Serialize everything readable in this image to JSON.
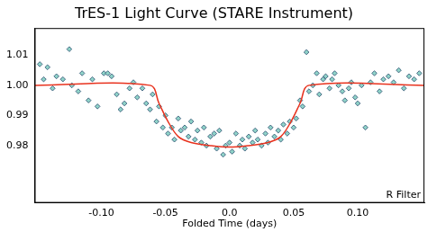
{
  "chart_data": {
    "type": "scatter",
    "title": "TrES-1 Light Curve (STARE Instrument)",
    "x_label": "Folded Time (days)",
    "annotation": "R Filter",
    "xlim": [
      -0.152,
      0.152
    ],
    "ylim": [
      0.961,
      1.019
    ],
    "xticks": [
      {
        "value": -0.1,
        "label": "-0.10"
      },
      -0.05,
      {
        "value": 0,
        "label": "0.0"
      },
      0.05,
      {
        "value": 0.1,
        "label": "0.10"
      }
    ],
    "yticks": [
      0.98,
      0.99,
      {
        "value": 1,
        "label": "1.00"
      },
      1.01
    ],
    "grid": false,
    "series": [
      {
        "type": "scatter",
        "marker": "diamond",
        "color": "#8fd3c8",
        "x": [
          -0.148,
          -0.145,
          -0.142,
          -0.138,
          -0.135,
          -0.13,
          -0.125,
          -0.123,
          -0.118,
          -0.115,
          -0.11,
          -0.107,
          -0.103,
          -0.098,
          -0.095,
          -0.092,
          -0.088,
          -0.085,
          -0.082,
          -0.078,
          -0.075,
          -0.072,
          -0.068,
          -0.065,
          -0.062,
          -0.06,
          -0.057,
          -0.055,
          -0.052,
          -0.05,
          -0.048,
          -0.045,
          -0.043,
          -0.04,
          -0.038,
          -0.035,
          -0.032,
          -0.03,
          -0.027,
          -0.025,
          -0.022,
          -0.02,
          -0.018,
          -0.015,
          -0.012,
          -0.01,
          -0.008,
          -0.005,
          -0.003,
          0.0,
          0.002,
          0.005,
          0.008,
          0.01,
          0.012,
          0.015,
          0.018,
          0.02,
          0.022,
          0.025,
          0.028,
          0.03,
          0.032,
          0.035,
          0.038,
          0.04,
          0.042,
          0.045,
          0.047,
          0.05,
          0.052,
          0.055,
          0.057,
          0.06,
          0.062,
          0.065,
          0.068,
          0.07,
          0.073,
          0.075,
          0.078,
          0.08,
          0.082,
          0.085,
          0.088,
          0.09,
          0.093,
          0.095,
          0.098,
          0.1,
          0.103,
          0.106,
          0.11,
          0.113,
          0.117,
          0.12,
          0.124,
          0.128,
          0.132,
          0.136,
          0.14,
          0.144,
          0.148
        ],
        "values": [
          1.007,
          1.002,
          1.006,
          0.999,
          1.003,
          1.002,
          1.012,
          1.0,
          0.998,
          1.004,
          0.995,
          1.002,
          0.993,
          1.004,
          1.004,
          1.003,
          0.997,
          0.992,
          0.994,
          0.999,
          1.001,
          0.996,
          0.999,
          0.994,
          0.992,
          0.997,
          0.988,
          0.993,
          0.986,
          0.99,
          0.984,
          0.986,
          0.982,
          0.989,
          0.985,
          0.986,
          0.983,
          0.988,
          0.982,
          0.985,
          0.981,
          0.986,
          0.98,
          0.983,
          0.984,
          0.979,
          0.985,
          0.977,
          0.98,
          0.981,
          0.978,
          0.984,
          0.98,
          0.982,
          0.979,
          0.983,
          0.981,
          0.985,
          0.982,
          0.98,
          0.984,
          0.981,
          0.986,
          0.983,
          0.985,
          0.982,
          0.987,
          0.984,
          0.988,
          0.986,
          0.989,
          0.995,
          0.993,
          1.011,
          0.998,
          1.0,
          1.004,
          0.997,
          1.002,
          1.003,
          0.999,
          1.002,
          1.004,
          1.0,
          0.998,
          0.995,
          0.999,
          1.001,
          0.996,
          0.994,
          1.0,
          0.986,
          1.001,
          1.004,
          0.998,
          1.002,
          1.003,
          1.001,
          1.005,
          0.999,
          1.003,
          1.002,
          1.004
        ]
      },
      {
        "type": "line",
        "color": "#e8321e",
        "line_style": "solid",
        "x": [
          -0.152,
          -0.062,
          -0.055,
          -0.048,
          -0.04,
          -0.03,
          -0.015,
          0.0,
          0.015,
          0.03,
          0.04,
          0.048,
          0.055,
          0.062,
          0.152
        ],
        "values": [
          1.0,
          1.0,
          0.994,
          0.988,
          0.983,
          0.981,
          0.98,
          0.9795,
          0.98,
          0.981,
          0.983,
          0.988,
          0.994,
          1.0,
          1.0
        ]
      }
    ]
  }
}
